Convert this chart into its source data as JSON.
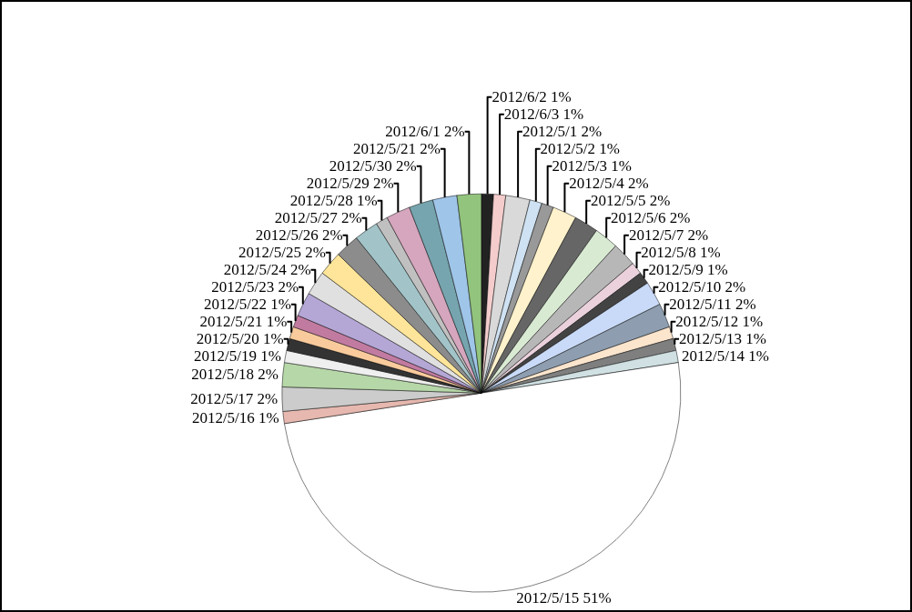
{
  "chart_data": {
    "type": "pie",
    "categories": [
      "2012/6/2",
      "2012/6/3",
      "2012/5/1",
      "2012/5/2",
      "2012/5/3",
      "2012/5/4",
      "2012/5/5",
      "2012/5/6",
      "2012/5/7",
      "2012/5/8",
      "2012/5/9",
      "2012/5/10",
      "2012/5/11",
      "2012/5/12",
      "2012/5/13",
      "2012/5/14",
      "2012/5/15",
      "2012/5/16",
      "2012/5/17",
      "2012/5/18",
      "2012/5/19",
      "2012/5/20",
      "2012/5/21",
      "2012/5/22",
      "2012/5/23",
      "2012/5/24",
      "2012/5/25",
      "2012/5/26",
      "2012/5/27",
      "2012/5/28",
      "2012/5/29",
      "2012/5/30",
      "2012/5/21",
      "2012/6/1"
    ],
    "values": [
      1,
      1,
      2,
      1,
      1,
      2,
      2,
      2,
      2,
      1,
      1,
      2,
      2,
      1,
      1,
      1,
      51,
      1,
      2,
      2,
      1,
      1,
      1,
      1,
      2,
      2,
      2,
      2,
      2,
      1,
      2,
      2,
      2,
      2
    ],
    "value_labels": [
      "1%",
      "1%",
      "2%",
      "1%",
      "1%",
      "2%",
      "2%",
      "2%",
      "2%",
      "1%",
      "1%",
      "2%",
      "2%",
      "1%",
      "1%",
      "1%",
      "51%",
      "1%",
      "2%",
      "2%",
      "1%",
      "1%",
      "1%",
      "1%",
      "2%",
      "2%",
      "2%",
      "2%",
      "2%",
      "1%",
      "2%",
      "2%",
      "2%",
      "2%"
    ],
    "colors": [
      "#222222",
      "#f4cccc",
      "#d9d9d9",
      "#cfe2f3",
      "#999999",
      "#fff2cc",
      "#666666",
      "#d9ead3",
      "#b7b7b7",
      "#ead1dc",
      "#434343",
      "#c9daf8",
      "#8e9eb0",
      "#fce5cd",
      "#7f7f7f",
      "#d0e0e3",
      "#ffffff",
      "#e6b8af",
      "#cccccc",
      "#b6d7a8",
      "#efefef",
      "#333333",
      "#f9cb9c",
      "#c27ba0",
      "#b4a7d6",
      "#e0e0e0",
      "#ffe599",
      "#8c8c8c",
      "#a2c4c9",
      "#c0c0c0",
      "#d5a6bd",
      "#76a5af",
      "#9fc5e8",
      "#93c47d"
    ],
    "legend": false
  }
}
